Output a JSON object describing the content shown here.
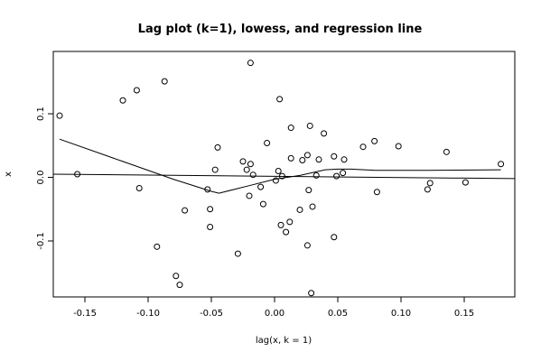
{
  "chart_data": {
    "type": "scatter",
    "title": "Lag plot (k=1), lowess, and regression line",
    "xlabel": "lag(x, k = 1)",
    "ylabel": "x",
    "xlim": [
      -0.175,
      0.19
    ],
    "ylim": [
      -0.188,
      0.198
    ],
    "x_ticks": [
      -0.15,
      -0.1,
      -0.05,
      0.0,
      0.05,
      0.1,
      0.15
    ],
    "x_tick_labels": [
      "-0.15",
      "-0.10",
      "-0.05",
      "0.00",
      "0.05",
      "0.10",
      "0.15"
    ],
    "y_ticks": [
      -0.1,
      0.0,
      0.1
    ],
    "y_tick_labels": [
      "-0.1",
      "0.0",
      "0.1"
    ],
    "grid": false,
    "points": [
      {
        "x": -0.17,
        "y": 0.097
      },
      {
        "x": -0.156,
        "y": 0.005
      },
      {
        "x": -0.12,
        "y": 0.121
      },
      {
        "x": -0.109,
        "y": 0.137
      },
      {
        "x": -0.107,
        "y": -0.017
      },
      {
        "x": -0.093,
        "y": -0.109
      },
      {
        "x": -0.087,
        "y": 0.151
      },
      {
        "x": -0.078,
        "y": -0.155
      },
      {
        "x": -0.075,
        "y": -0.169
      },
      {
        "x": -0.071,
        "y": -0.052
      },
      {
        "x": -0.053,
        "y": -0.019
      },
      {
        "x": -0.051,
        "y": -0.05
      },
      {
        "x": -0.051,
        "y": -0.078
      },
      {
        "x": -0.047,
        "y": 0.012
      },
      {
        "x": -0.045,
        "y": 0.047
      },
      {
        "x": -0.029,
        "y": -0.12
      },
      {
        "x": -0.025,
        "y": 0.025
      },
      {
        "x": -0.022,
        "y": 0.012
      },
      {
        "x": -0.02,
        "y": -0.029
      },
      {
        "x": -0.019,
        "y": 0.18
      },
      {
        "x": -0.019,
        "y": 0.021
      },
      {
        "x": -0.017,
        "y": 0.004
      },
      {
        "x": -0.011,
        "y": -0.015
      },
      {
        "x": -0.009,
        "y": -0.042
      },
      {
        "x": -0.006,
        "y": 0.054
      },
      {
        "x": 0.001,
        "y": -0.005
      },
      {
        "x": 0.003,
        "y": 0.01
      },
      {
        "x": 0.004,
        "y": 0.123
      },
      {
        "x": 0.005,
        "y": -0.075
      },
      {
        "x": 0.006,
        "y": 0.002
      },
      {
        "x": 0.009,
        "y": -0.086
      },
      {
        "x": 0.012,
        "y": -0.07
      },
      {
        "x": 0.013,
        "y": 0.078
      },
      {
        "x": 0.013,
        "y": 0.03
      },
      {
        "x": 0.02,
        "y": -0.051
      },
      {
        "x": 0.022,
        "y": 0.027
      },
      {
        "x": 0.026,
        "y": 0.035
      },
      {
        "x": 0.026,
        "y": -0.107
      },
      {
        "x": 0.027,
        "y": -0.02
      },
      {
        "x": 0.028,
        "y": 0.081
      },
      {
        "x": 0.029,
        "y": -0.182
      },
      {
        "x": 0.03,
        "y": -0.046
      },
      {
        "x": 0.033,
        "y": 0.003
      },
      {
        "x": 0.035,
        "y": 0.028
      },
      {
        "x": 0.039,
        "y": 0.069
      },
      {
        "x": 0.047,
        "y": 0.033
      },
      {
        "x": 0.047,
        "y": -0.094
      },
      {
        "x": 0.049,
        "y": 0.002
      },
      {
        "x": 0.054,
        "y": 0.007
      },
      {
        "x": 0.055,
        "y": 0.028
      },
      {
        "x": 0.07,
        "y": 0.048
      },
      {
        "x": 0.079,
        "y": 0.057
      },
      {
        "x": 0.081,
        "y": -0.023
      },
      {
        "x": 0.098,
        "y": 0.049
      },
      {
        "x": 0.121,
        "y": -0.019
      },
      {
        "x": 0.123,
        "y": -0.009
      },
      {
        "x": 0.136,
        "y": 0.04
      },
      {
        "x": 0.151,
        "y": -0.008
      },
      {
        "x": 0.179,
        "y": 0.021
      }
    ],
    "lines": [
      {
        "kind": "lowess",
        "x": [
          -0.17,
          -0.12,
          -0.08,
          -0.05,
          -0.044,
          -0.02,
          0.0,
          0.02,
          0.04,
          0.05,
          0.06,
          0.08,
          0.12,
          0.179
        ],
        "y": [
          0.06,
          0.025,
          -0.003,
          -0.022,
          -0.025,
          -0.013,
          -0.003,
          0.003,
          0.012,
          0.013,
          0.013,
          0.011,
          0.011,
          0.012
        ]
      },
      {
        "kind": "regression",
        "x": [
          -0.175,
          0.19
        ],
        "y": [
          0.005,
          -0.002
        ]
      }
    ]
  }
}
